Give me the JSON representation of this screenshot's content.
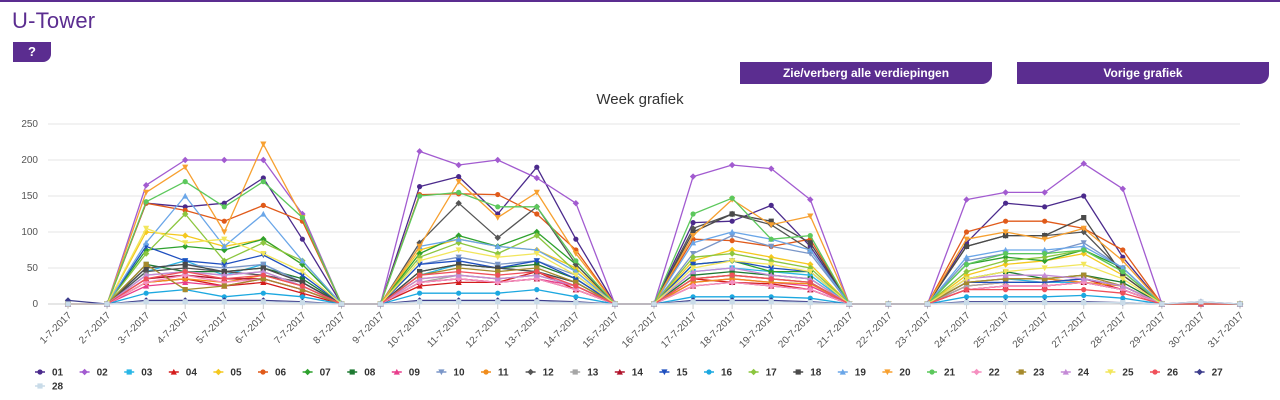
{
  "header": {
    "title": "U-Tower",
    "help_label": "?"
  },
  "buttons": {
    "toggle_floors": "Zie/verberg alle verdiepingen",
    "previous_chart": "Vorige grafiek"
  },
  "chart_data": {
    "type": "line",
    "title": "Week grafiek",
    "xlabel": "",
    "ylabel": "",
    "ylim": [
      0,
      250
    ],
    "yticks": [
      0,
      50,
      100,
      150,
      200,
      250
    ],
    "grid": "horizontal",
    "legend": "bottom",
    "categories": [
      "1-7-2017",
      "2-7-2017",
      "3-7-2017",
      "4-7-2017",
      "5-7-2017",
      "6-7-2017",
      "7-7-2017",
      "8-7-2017",
      "9-7-2017",
      "10-7-2017",
      "11-7-2017",
      "12-7-2017",
      "13-7-2017",
      "14-7-2017",
      "15-7-2017",
      "16-7-2017",
      "17-7-2017",
      "18-7-2017",
      "19-7-2017",
      "20-7-2017",
      "21-7-2017",
      "22-7-2017",
      "23-7-2017",
      "24-7-2017",
      "25-7-2017",
      "26-7-2017",
      "27-7-2017",
      "28-7-2017",
      "29-7-2017",
      "30-7-2017",
      "31-7-2017"
    ],
    "series": [
      {
        "name": "01",
        "color": "#4b2a8c",
        "marker": "circle",
        "values": [
          0,
          0,
          140,
          135,
          140,
          175,
          90,
          0,
          0,
          163,
          177,
          125,
          190,
          90,
          0,
          0,
          113,
          115,
          137,
          80,
          0,
          0,
          0,
          85,
          140,
          135,
          150,
          65,
          0,
          0,
          0
        ]
      },
      {
        "name": "02",
        "color": "#a25bd0",
        "marker": "diamond",
        "values": [
          0,
          0,
          165,
          200,
          200,
          200,
          125,
          0,
          0,
          212,
          193,
          200,
          175,
          140,
          0,
          0,
          177,
          193,
          188,
          145,
          0,
          0,
          0,
          145,
          155,
          155,
          195,
          160,
          0,
          0,
          0
        ]
      },
      {
        "name": "03",
        "color": "#29b6e6",
        "marker": "square",
        "values": [
          0,
          0,
          45,
          60,
          40,
          55,
          30,
          0,
          0,
          40,
          55,
          50,
          45,
          30,
          0,
          0,
          45,
          50,
          45,
          40,
          0,
          0,
          0,
          30,
          35,
          30,
          30,
          20,
          0,
          0,
          0
        ]
      },
      {
        "name": "04",
        "color": "#d41c1c",
        "marker": "triangle",
        "values": [
          0,
          0,
          30,
          35,
          25,
          30,
          15,
          0,
          0,
          25,
          30,
          30,
          45,
          20,
          0,
          0,
          35,
          30,
          28,
          20,
          0,
          0,
          0,
          25,
          30,
          30,
          35,
          20,
          0,
          0,
          0
        ]
      },
      {
        "name": "05",
        "color": "#f4c81f",
        "marker": "diamond",
        "values": [
          0,
          0,
          100,
          95,
          80,
          90,
          55,
          0,
          0,
          75,
          90,
          80,
          75,
          50,
          0,
          0,
          60,
          75,
          65,
          55,
          0,
          0,
          0,
          40,
          55,
          60,
          70,
          40,
          0,
          0,
          0
        ]
      },
      {
        "name": "06",
        "color": "#e05a1a",
        "marker": "circle",
        "values": [
          0,
          0,
          140,
          130,
          115,
          137,
          115,
          0,
          0,
          152,
          153,
          152,
          125,
          75,
          0,
          0,
          90,
          88,
          80,
          90,
          0,
          0,
          0,
          100,
          115,
          115,
          105,
          75,
          0,
          0,
          0
        ]
      },
      {
        "name": "07",
        "color": "#2ea12e",
        "marker": "diamond",
        "values": [
          0,
          0,
          75,
          80,
          75,
          90,
          55,
          0,
          0,
          70,
          95,
          80,
          100,
          55,
          0,
          0,
          55,
          60,
          45,
          45,
          0,
          0,
          0,
          55,
          65,
          60,
          75,
          50,
          0,
          0,
          0
        ]
      },
      {
        "name": "08",
        "color": "#1e7a32",
        "marker": "square",
        "values": [
          0,
          0,
          55,
          45,
          45,
          50,
          35,
          0,
          0,
          45,
          55,
          50,
          55,
          35,
          0,
          0,
          40,
          45,
          40,
          35,
          0,
          0,
          0,
          35,
          45,
          35,
          40,
          30,
          0,
          0,
          0
        ]
      },
      {
        "name": "09",
        "color": "#e83e8c",
        "marker": "triangle",
        "values": [
          0,
          0,
          25,
          30,
          25,
          35,
          20,
          0,
          0,
          30,
          35,
          30,
          35,
          25,
          0,
          0,
          30,
          35,
          30,
          25,
          0,
          0,
          0,
          20,
          25,
          25,
          30,
          20,
          0,
          0,
          0
        ]
      },
      {
        "name": "10",
        "color": "#7a96c8",
        "marker": "triangle-down",
        "values": [
          0,
          0,
          50,
          55,
          50,
          55,
          30,
          0,
          0,
          55,
          65,
          55,
          60,
          40,
          0,
          0,
          70,
          95,
          80,
          70,
          0,
          0,
          0,
          60,
          70,
          70,
          85,
          50,
          0,
          0,
          0
        ]
      },
      {
        "name": "11",
        "color": "#f08c1c",
        "marker": "circle",
        "values": [
          0,
          0,
          30,
          35,
          30,
          40,
          25,
          0,
          0,
          35,
          40,
          35,
          40,
          25,
          0,
          0,
          30,
          35,
          30,
          28,
          0,
          0,
          0,
          30,
          35,
          35,
          30,
          25,
          0,
          0,
          0
        ]
      },
      {
        "name": "12",
        "color": "#555555",
        "marker": "diamond",
        "values": [
          0,
          0,
          45,
          50,
          45,
          40,
          30,
          0,
          0,
          85,
          140,
          92,
          135,
          55,
          0,
          0,
          105,
          125,
          110,
          75,
          0,
          0,
          0,
          80,
          95,
          95,
          100,
          45,
          0,
          0,
          0
        ]
      },
      {
        "name": "13",
        "color": "#a6a6a6",
        "marker": "square",
        "values": [
          0,
          0,
          40,
          45,
          40,
          45,
          25,
          0,
          0,
          30,
          40,
          35,
          40,
          25,
          0,
          0,
          35,
          40,
          35,
          30,
          0,
          0,
          0,
          25,
          30,
          30,
          35,
          25,
          0,
          0,
          0
        ]
      },
      {
        "name": "14",
        "color": "#b0122a",
        "marker": "triangle",
        "values": [
          0,
          0,
          35,
          40,
          35,
          35,
          20,
          0,
          0,
          30,
          35,
          30,
          35,
          20,
          0,
          0,
          25,
          30,
          25,
          20,
          0,
          0,
          0,
          20,
          25,
          25,
          30,
          20,
          0,
          0,
          0
        ]
      },
      {
        "name": "15",
        "color": "#1f4fbf",
        "marker": "triangle-down",
        "values": [
          0,
          0,
          80,
          60,
          55,
          68,
          40,
          0,
          0,
          55,
          60,
          50,
          60,
          35,
          0,
          0,
          55,
          60,
          50,
          45,
          0,
          0,
          0,
          30,
          30,
          30,
          35,
          25,
          0,
          0,
          0
        ]
      },
      {
        "name": "16",
        "color": "#1ca8e0",
        "marker": "circle",
        "values": [
          0,
          0,
          15,
          20,
          10,
          15,
          10,
          0,
          0,
          15,
          15,
          15,
          20,
          10,
          0,
          0,
          10,
          10,
          10,
          8,
          0,
          0,
          0,
          10,
          10,
          10,
          12,
          8,
          0,
          0,
          0
        ]
      },
      {
        "name": "17",
        "color": "#8cc63f",
        "marker": "diamond",
        "values": [
          0,
          0,
          70,
          125,
          60,
          85,
          60,
          0,
          0,
          65,
          85,
          70,
          95,
          45,
          0,
          0,
          65,
          70,
          60,
          50,
          0,
          0,
          0,
          45,
          60,
          65,
          75,
          45,
          0,
          0,
          0
        ]
      },
      {
        "name": "18",
        "color": "#4a4a4a",
        "marker": "square",
        "values": [
          0,
          0,
          50,
          55,
          45,
          50,
          30,
          0,
          0,
          45,
          55,
          50,
          45,
          30,
          0,
          0,
          100,
          125,
          115,
          85,
          0,
          0,
          0,
          80,
          95,
          95,
          120,
          40,
          0,
          0,
          0
        ]
      },
      {
        "name": "19",
        "color": "#6aa6e8",
        "marker": "triangle",
        "values": [
          0,
          0,
          85,
          150,
          80,
          125,
          60,
          0,
          0,
          80,
          90,
          80,
          75,
          45,
          0,
          0,
          85,
          100,
          90,
          75,
          0,
          0,
          0,
          65,
          75,
          75,
          80,
          50,
          0,
          0,
          0
        ]
      },
      {
        "name": "20",
        "color": "#f7a030",
        "marker": "triangle-down",
        "values": [
          0,
          0,
          155,
          190,
          100,
          222,
          120,
          0,
          0,
          80,
          170,
          120,
          155,
          70,
          0,
          0,
          95,
          145,
          110,
          122,
          0,
          0,
          0,
          90,
          100,
          90,
          105,
          60,
          0,
          0,
          0
        ]
      },
      {
        "name": "21",
        "color": "#5cc85c",
        "marker": "circle",
        "values": [
          0,
          0,
          142,
          170,
          135,
          170,
          120,
          0,
          0,
          150,
          155,
          135,
          135,
          60,
          0,
          0,
          125,
          147,
          90,
          95,
          0,
          0,
          0,
          55,
          70,
          70,
          75,
          45,
          0,
          0,
          0
        ]
      },
      {
        "name": "22",
        "color": "#f58fc0",
        "marker": "diamond",
        "values": [
          0,
          0,
          30,
          40,
          30,
          35,
          20,
          0,
          0,
          30,
          35,
          30,
          35,
          20,
          0,
          0,
          25,
          30,
          25,
          20,
          0,
          0,
          0,
          20,
          25,
          25,
          30,
          20,
          0,
          0,
          0
        ]
      },
      {
        "name": "23",
        "color": "#a68a2c",
        "marker": "square",
        "values": [
          0,
          0,
          55,
          20,
          25,
          35,
          20,
          0,
          0,
          40,
          50,
          45,
          50,
          30,
          0,
          0,
          35,
          40,
          35,
          30,
          0,
          0,
          0,
          30,
          35,
          35,
          40,
          25,
          0,
          0,
          0
        ]
      },
      {
        "name": "24",
        "color": "#c48ad6",
        "marker": "triangle",
        "values": [
          0,
          0,
          40,
          45,
          40,
          45,
          25,
          0,
          0,
          35,
          40,
          35,
          40,
          25,
          0,
          0,
          45,
          50,
          40,
          35,
          0,
          0,
          0,
          35,
          40,
          40,
          35,
          25,
          0,
          0,
          0
        ]
      },
      {
        "name": "25",
        "color": "#f2e65c",
        "marker": "triangle-down",
        "values": [
          0,
          0,
          105,
          85,
          90,
          70,
          45,
          0,
          0,
          60,
          75,
          65,
          70,
          40,
          0,
          0,
          50,
          60,
          55,
          45,
          0,
          0,
          0,
          35,
          45,
          50,
          55,
          35,
          0,
          0,
          0
        ]
      },
      {
        "name": "26",
        "color": "#f0505a",
        "marker": "circle",
        "values": [
          0,
          0,
          35,
          45,
          35,
          40,
          25,
          0,
          0,
          40,
          45,
          40,
          45,
          25,
          0,
          0,
          35,
          40,
          35,
          30,
          0,
          0,
          0,
          20,
          20,
          20,
          20,
          15,
          0,
          0,
          0
        ]
      },
      {
        "name": "27",
        "color": "#3d3d8c",
        "marker": "diamond",
        "values": [
          5,
          0,
          5,
          5,
          5,
          5,
          3,
          0,
          0,
          5,
          5,
          5,
          5,
          3,
          0,
          0,
          5,
          5,
          5,
          3,
          0,
          0,
          0,
          3,
          3,
          3,
          3,
          2,
          0,
          3,
          0
        ]
      },
      {
        "name": "28",
        "color": "#c9dbe8",
        "marker": "square",
        "values": [
          0,
          0,
          3,
          3,
          3,
          3,
          2,
          0,
          0,
          3,
          3,
          3,
          3,
          2,
          0,
          0,
          3,
          3,
          3,
          2,
          0,
          0,
          0,
          2,
          2,
          2,
          2,
          2,
          0,
          3,
          0
        ]
      }
    ]
  }
}
